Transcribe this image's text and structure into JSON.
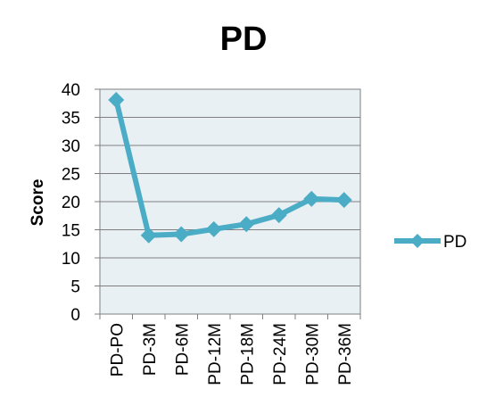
{
  "chart_data": {
    "type": "line",
    "title": "PD",
    "xlabel": "",
    "ylabel": "Score",
    "categories": [
      "PD-PO",
      "PD-3M",
      "PD-6M",
      "PD-12M",
      "PD-18M",
      "PD-24M",
      "PD-30M",
      "PD-36M"
    ],
    "series": [
      {
        "name": "PD",
        "values": [
          38.1,
          14.0,
          14.2,
          15.1,
          16.0,
          17.6,
          20.5,
          20.3
        ]
      }
    ],
    "ylim": [
      0,
      40
    ],
    "yticks": [
      0,
      5,
      10,
      15,
      20,
      25,
      30,
      35,
      40
    ],
    "grid": true,
    "legend": "right",
    "colors": {
      "line": "#4bacc6",
      "plot_bg": "#e8f0f4",
      "grid": "#7f7f7f"
    }
  }
}
